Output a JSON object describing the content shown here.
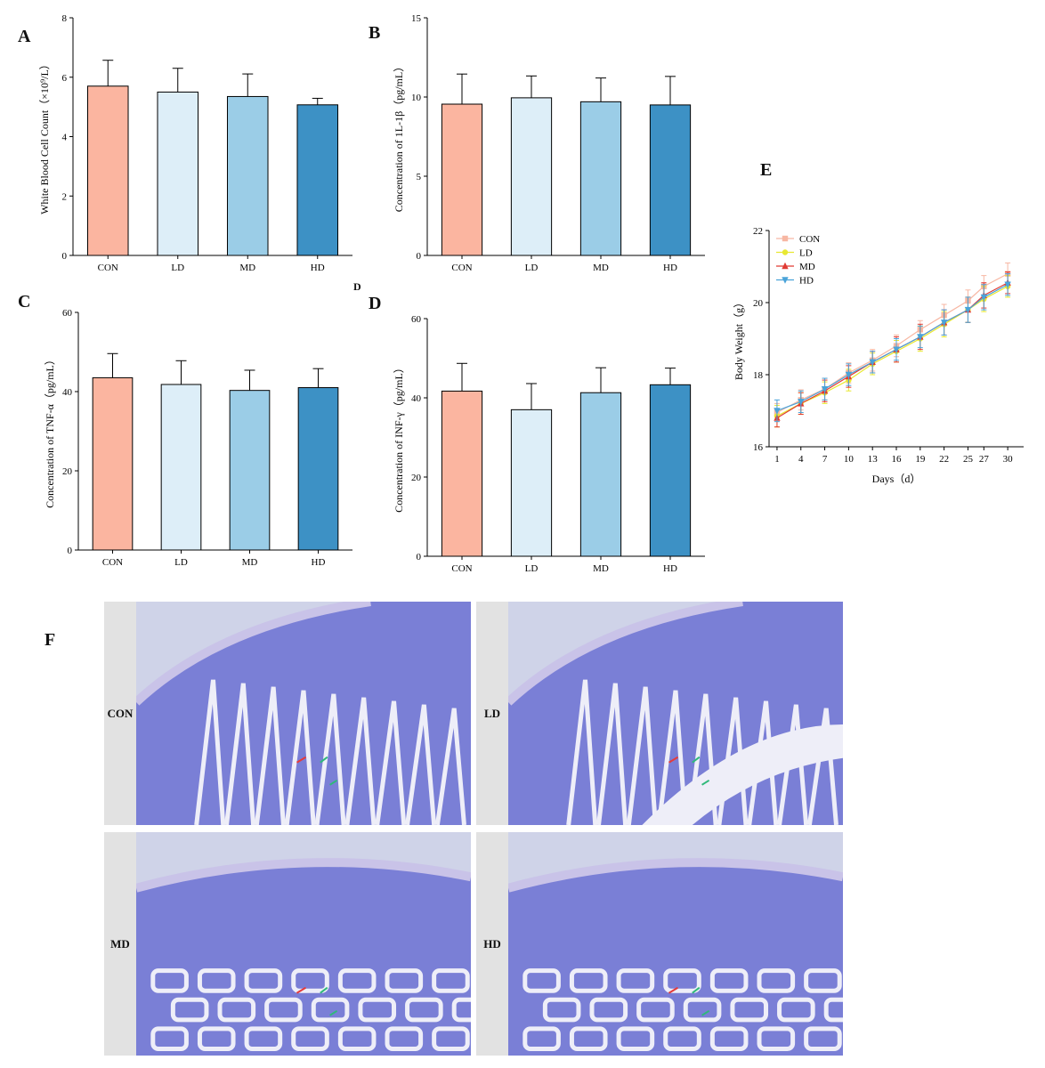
{
  "panels": {
    "A": "A",
    "B": "B",
    "C": "C",
    "D": "D",
    "E": "E",
    "F": "F",
    "stray_label": "D"
  },
  "colors": {
    "CON": "#fbb5a0",
    "LD": "#ddeef8",
    "MD": "#9bcde7",
    "HD": "#3d91c5",
    "line_CON": "#f7b7a3",
    "line_LD": "#e8e832",
    "line_MD": "#e03a33",
    "line_HD": "#4aa3d9",
    "tissue": "#7a7fd6",
    "arrow_red": "#e53b3b",
    "arrow_green": "#2fb97a"
  },
  "chart_data": [
    {
      "id": "A",
      "type": "bar",
      "categories": [
        "CON",
        "LD",
        "MD",
        "HD"
      ],
      "values": [
        5.7,
        5.5,
        5.35,
        5.07
      ],
      "errors": [
        0.87,
        0.8,
        0.76,
        0.22
      ],
      "ylabel": "White Blood Cell Count（×10⁹/L）",
      "ylim": [
        0,
        8
      ],
      "yticks": [
        0,
        2,
        4,
        6,
        8
      ]
    },
    {
      "id": "B",
      "type": "bar",
      "categories": [
        "CON",
        "LD",
        "MD",
        "HD"
      ],
      "values": [
        9.55,
        9.95,
        9.7,
        9.5
      ],
      "errors": [
        1.9,
        1.38,
        1.5,
        1.8
      ],
      "ylabel": "Concentration of 1L-1β（pg/mL）",
      "ylim": [
        0,
        15
      ],
      "yticks": [
        0,
        5,
        10,
        15
      ]
    },
    {
      "id": "C",
      "type": "bar",
      "categories": [
        "CON",
        "LD",
        "MD",
        "HD"
      ],
      "values": [
        43.5,
        41.8,
        40.3,
        41.0
      ],
      "errors": [
        6.1,
        6.0,
        5.1,
        4.8
      ],
      "ylabel": "Concentration of TNF-α（pg/mL）",
      "ylim": [
        0,
        60
      ],
      "yticks": [
        0,
        20,
        40,
        60
      ]
    },
    {
      "id": "D",
      "type": "bar",
      "categories": [
        "CON",
        "LD",
        "MD",
        "HD"
      ],
      "values": [
        41.7,
        37.0,
        41.3,
        43.3
      ],
      "errors": [
        7.0,
        6.6,
        6.3,
        4.2
      ],
      "ylabel": "Concentration of INF-γ（pg/mL）",
      "ylim": [
        0,
        60
      ],
      "yticks": [
        0,
        20,
        40,
        60
      ]
    },
    {
      "id": "E",
      "type": "line",
      "x": [
        1,
        4,
        7,
        10,
        13,
        16,
        19,
        22,
        25,
        27,
        30
      ],
      "xticks": [
        "1",
        "4",
        "7",
        "10",
        "13",
        "16",
        "19",
        "22",
        "25",
        "27",
        "30"
      ],
      "xlabel": "Days（d）",
      "ylabel": "Body Weight（g）",
      "ylim": [
        16,
        22
      ],
      "yticks": [
        16,
        18,
        20,
        22
      ],
      "legend_position": "top-left",
      "series": [
        {
          "name": "CON",
          "marker": "square",
          "values": [
            16.95,
            17.3,
            17.6,
            18.05,
            18.4,
            18.8,
            19.25,
            19.65,
            20.05,
            20.45,
            20.8
          ],
          "errors": [
            0.25,
            0.28,
            0.3,
            0.28,
            0.3,
            0.3,
            0.25,
            0.3,
            0.3,
            0.3,
            0.3
          ]
        },
        {
          "name": "LD",
          "marker": "circle",
          "values": [
            16.85,
            17.2,
            17.5,
            17.85,
            18.3,
            18.65,
            19.0,
            19.4,
            19.8,
            20.1,
            20.45
          ],
          "errors": [
            0.3,
            0.3,
            0.3,
            0.3,
            0.3,
            0.3,
            0.35,
            0.35,
            0.35,
            0.35,
            0.3
          ]
        },
        {
          "name": "MD",
          "marker": "triangle-up",
          "values": [
            16.8,
            17.2,
            17.55,
            17.95,
            18.35,
            18.7,
            19.05,
            19.45,
            19.8,
            20.2,
            20.55
          ],
          "errors": [
            0.25,
            0.3,
            0.3,
            0.3,
            0.3,
            0.35,
            0.35,
            0.35,
            0.35,
            0.35,
            0.3
          ]
        },
        {
          "name": "HD",
          "marker": "triangle-down",
          "values": [
            17.0,
            17.25,
            17.6,
            18.0,
            18.35,
            18.7,
            19.05,
            19.45,
            19.8,
            20.15,
            20.5
          ],
          "errors": [
            0.3,
            0.3,
            0.3,
            0.3,
            0.3,
            0.3,
            0.3,
            0.35,
            0.35,
            0.35,
            0.3
          ]
        }
      ]
    }
  ],
  "histology": {
    "panels": [
      {
        "label": "CON"
      },
      {
        "label": "LD"
      },
      {
        "label": "MD"
      },
      {
        "label": "HD"
      }
    ]
  }
}
